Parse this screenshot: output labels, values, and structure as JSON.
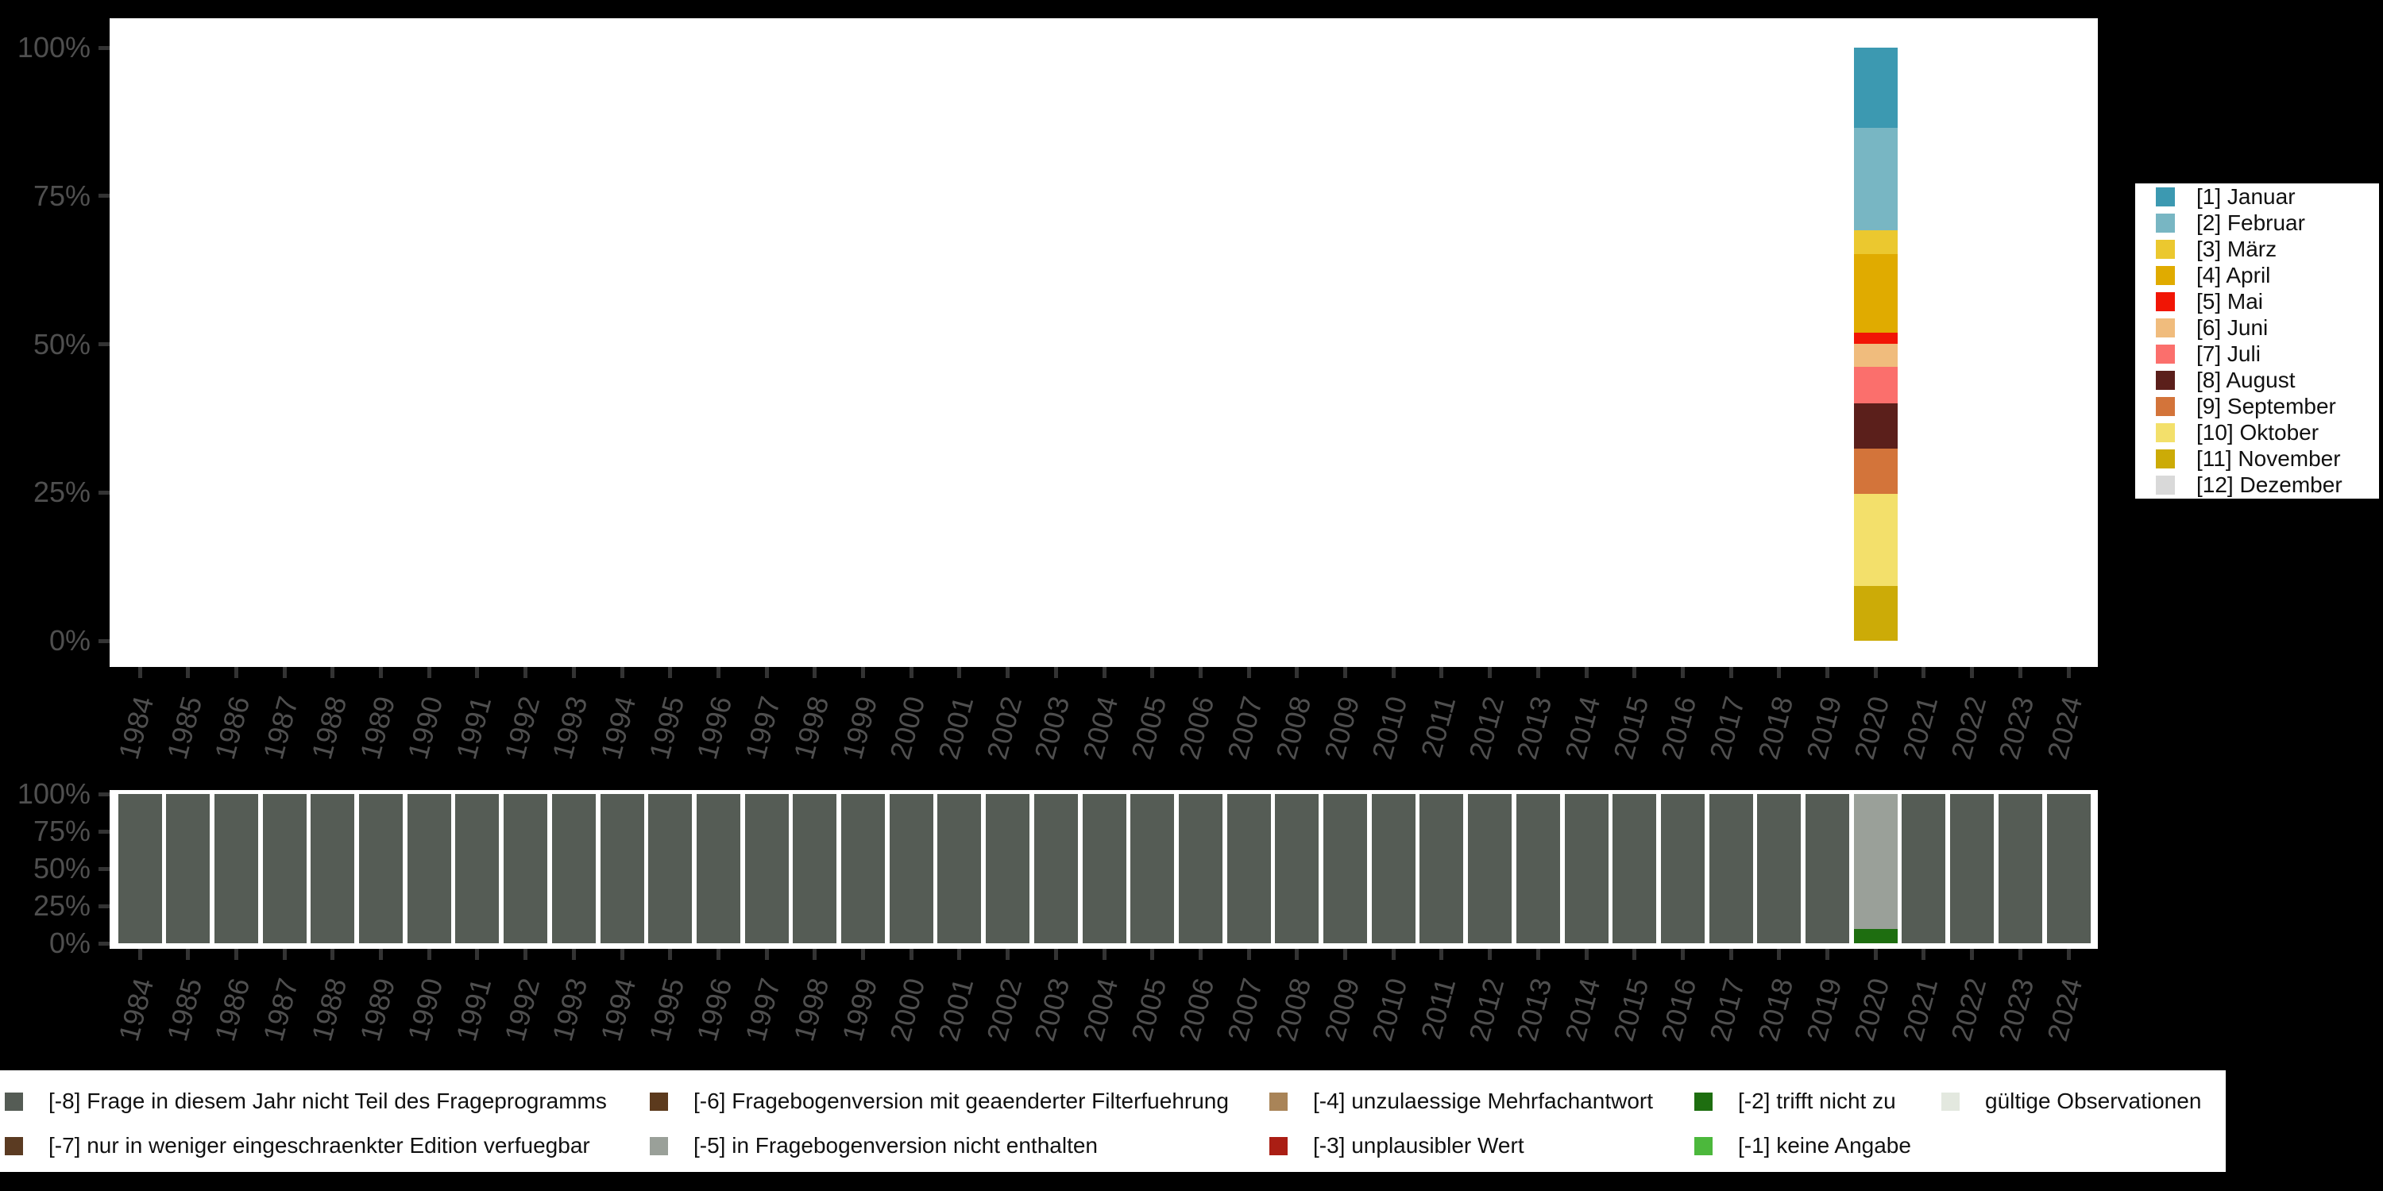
{
  "figure": {
    "background": "#000000",
    "plot_background": "#ffffff"
  },
  "axis_style": {
    "tick_color": "#333333",
    "label_color": "#4f4f4f"
  },
  "years": [
    "1984",
    "1985",
    "1986",
    "1987",
    "1988",
    "1989",
    "1990",
    "1991",
    "1992",
    "1993",
    "1994",
    "1995",
    "1996",
    "1997",
    "1998",
    "1999",
    "2000",
    "2001",
    "2002",
    "2003",
    "2004",
    "2005",
    "2006",
    "2007",
    "2008",
    "2009",
    "2010",
    "2011",
    "2012",
    "2013",
    "2014",
    "2015",
    "2016",
    "2017",
    "2018",
    "2019",
    "2020",
    "2021",
    "2022",
    "2023",
    "2024"
  ],
  "chart_data": [
    {
      "id": "top",
      "type": "bar",
      "stacked": true,
      "title": "",
      "xlabel": "",
      "ylabel": "",
      "unit": "percent",
      "ylim": [
        0,
        100
      ],
      "y_ticks": [
        "0%",
        "25%",
        "50%",
        "75%",
        "100%"
      ],
      "x_categories_ref": "years",
      "legend_position": "right",
      "series": [
        {
          "name": "[1] Januar",
          "color": "#3c99b1",
          "default": 0,
          "values_by_year": {
            "2020": 13.5
          }
        },
        {
          "name": "[2] Februar",
          "color": "#78b6c3",
          "default": 0,
          "values_by_year": {
            "2020": 17.3
          }
        },
        {
          "name": "[3] März",
          "color": "#ebc82f",
          "default": 0,
          "values_by_year": {
            "2020": 4.0
          }
        },
        {
          "name": "[4] April",
          "color": "#e0ab00",
          "default": 0,
          "values_by_year": {
            "2020": 13.2
          }
        },
        {
          "name": "[5] Mai",
          "color": "#f11505",
          "default": 0,
          "values_by_year": {
            "2020": 1.9
          }
        },
        {
          "name": "[6] Juni",
          "color": "#f0bc7d",
          "default": 0,
          "values_by_year": {
            "2020": 3.9
          }
        },
        {
          "name": "[7] Juli",
          "color": "#fb6f6c",
          "default": 0,
          "values_by_year": {
            "2020": 6.2
          }
        },
        {
          "name": "[8] August",
          "color": "#5b1f1b",
          "default": 0,
          "values_by_year": {
            "2020": 7.6
          }
        },
        {
          "name": "[9] September",
          "color": "#d3743a",
          "default": 0,
          "values_by_year": {
            "2020": 7.6
          }
        },
        {
          "name": "[10] Oktober",
          "color": "#f3e06b",
          "default": 0,
          "values_by_year": {
            "2020": 15.5
          }
        },
        {
          "name": "[11] November",
          "color": "#ccab07",
          "default": 0,
          "values_by_year": {
            "2020": 9.3
          }
        },
        {
          "name": "[12] Dezember",
          "color": "#d9d9d9",
          "default": 0,
          "values_by_year": {
            "2020": 0
          }
        }
      ]
    },
    {
      "id": "bottom",
      "type": "bar",
      "stacked": true,
      "title": "",
      "xlabel": "",
      "ylabel": "",
      "unit": "percent",
      "ylim": [
        0,
        100
      ],
      "y_ticks": [
        "0%",
        "25%",
        "50%",
        "75%",
        "100%"
      ],
      "x_categories_ref": "years",
      "legend_position": "bottom",
      "series": [
        {
          "name": "[-8] Frage in diesem Jahr nicht Teil des Frageprogramms",
          "color": "#555c55",
          "default": 100,
          "values_by_year": {
            "2020": 0
          }
        },
        {
          "name": "[-7] nur in weniger eingeschraenkter Edition verfuegbar",
          "color": "#5b3b22",
          "default": 0,
          "values_by_year": {}
        },
        {
          "name": "[-6] Fragebogenversion mit geaenderter Filterfuehrung",
          "color": "#5c3a1d",
          "default": 0,
          "values_by_year": {}
        },
        {
          "name": "[-5] in Fragebogenversion nicht enthalten",
          "color": "#9aa099",
          "default": 0,
          "values_by_year": {
            "2020": 90.4
          }
        },
        {
          "name": "[-4] unzulaessige Mehrfachantwort",
          "color": "#a98458",
          "default": 0,
          "values_by_year": {}
        },
        {
          "name": "[-3] unplausibler Wert",
          "color": "#aa1e14",
          "default": 0,
          "values_by_year": {}
        },
        {
          "name": "[-2] trifft nicht zu",
          "color": "#1e6e10",
          "default": 0,
          "values_by_year": {
            "2020": 9.6
          }
        },
        {
          "name": "[-1] keine Angabe",
          "color": "#4cb83c",
          "default": 0,
          "values_by_year": {}
        },
        {
          "name": "gültige Observationen",
          "color": "#e3e8df",
          "default": 0,
          "values_by_year": {}
        }
      ]
    }
  ]
}
